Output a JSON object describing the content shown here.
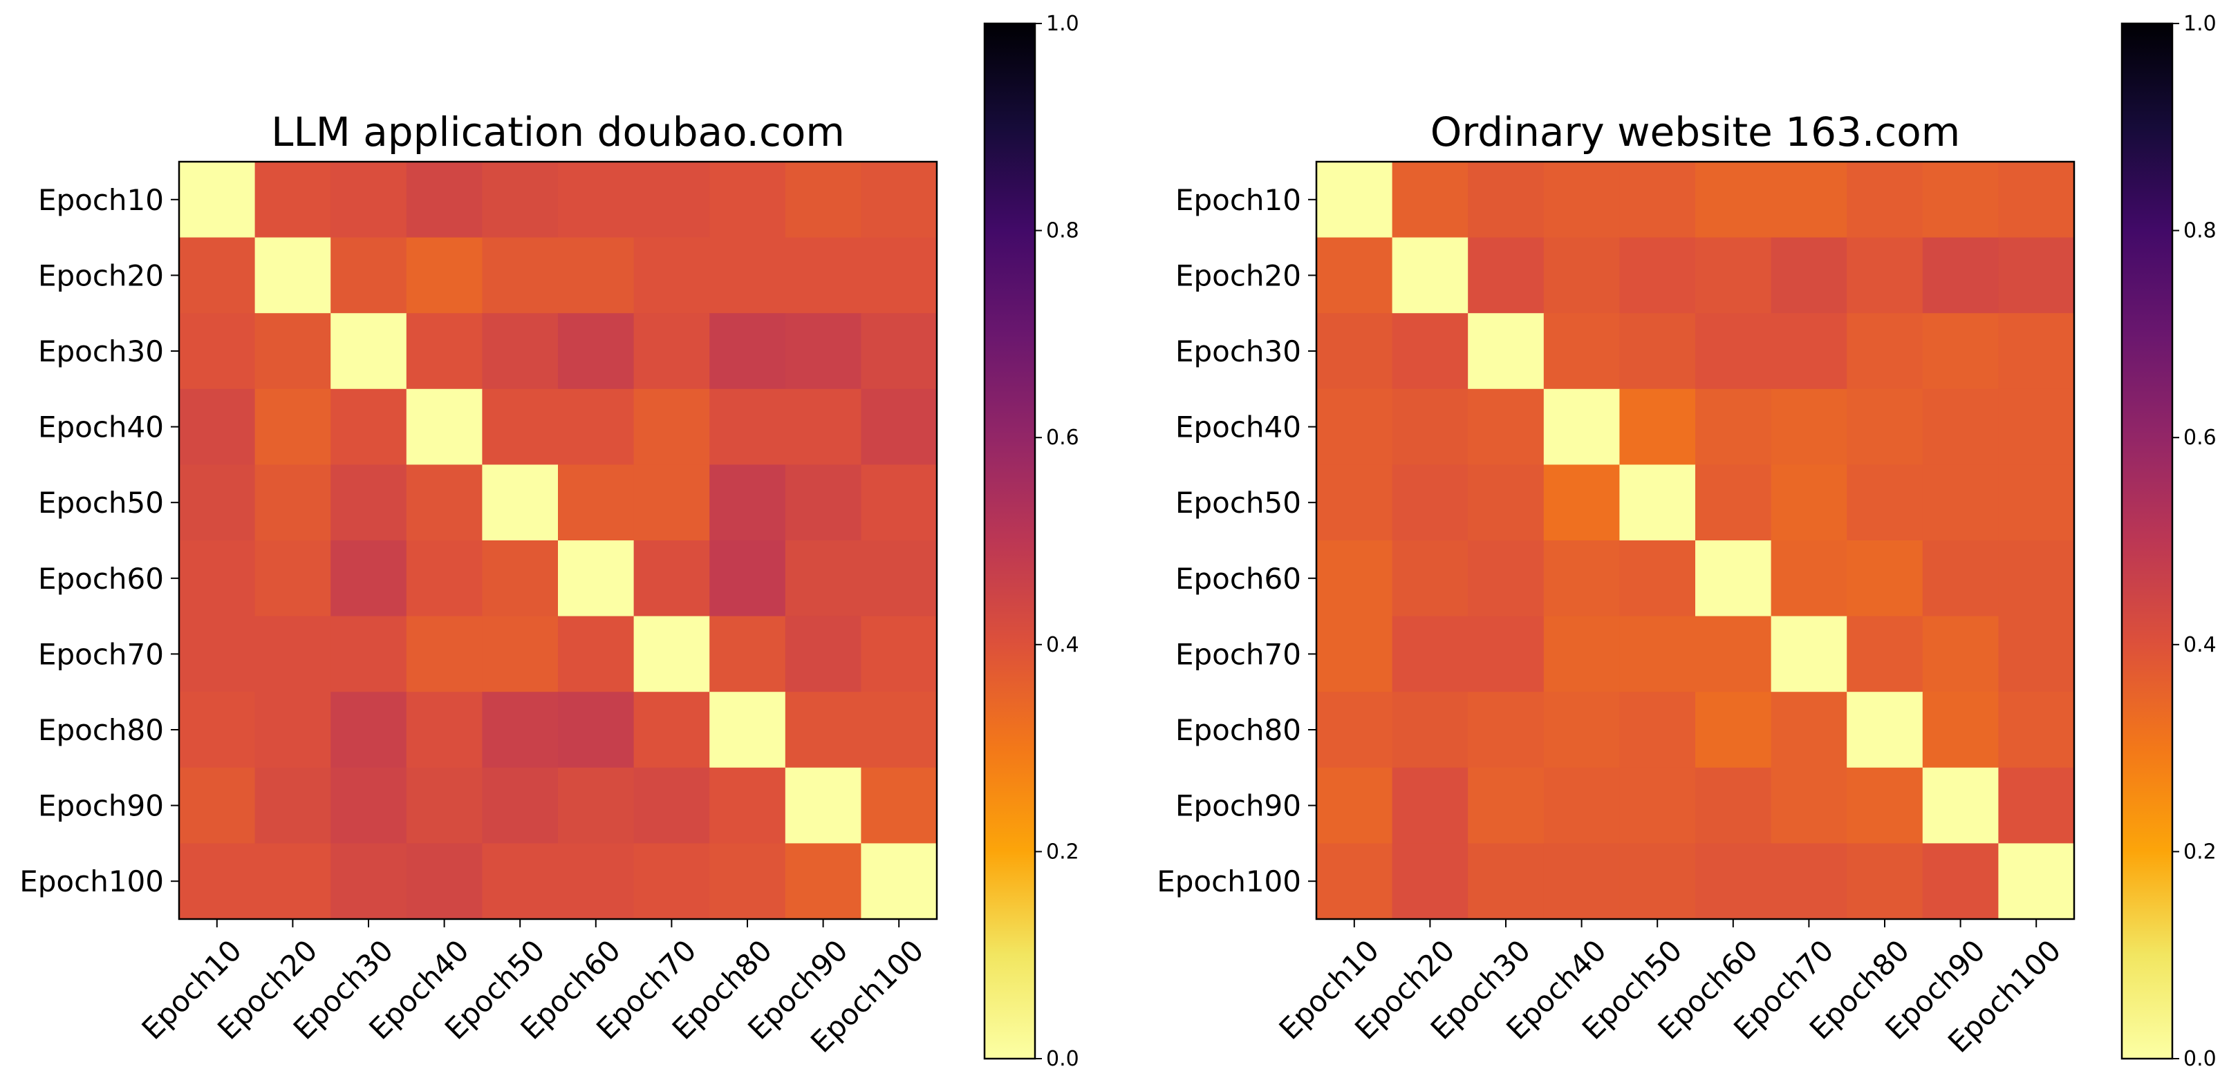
{
  "chart_data": [
    {
      "type": "heatmap",
      "title": "LLM application doubao.com",
      "xlabel": "",
      "ylabel": "",
      "row_labels": [
        "Epoch10",
        "Epoch20",
        "Epoch30",
        "Epoch40",
        "Epoch50",
        "Epoch60",
        "Epoch70",
        "Epoch80",
        "Epoch90",
        "Epoch100"
      ],
      "col_labels": [
        "Epoch10",
        "Epoch20",
        "Epoch30",
        "Epoch40",
        "Epoch50",
        "Epoch60",
        "Epoch70",
        "Epoch80",
        "Epoch90",
        "Epoch100"
      ],
      "colormap": "inferno_r",
      "vmin": 0.0,
      "vmax": 1.0,
      "colorbar_ticks": [
        "0.0",
        "0.2",
        "0.4",
        "0.6",
        "0.8",
        "1.0"
      ],
      "values": [
        [
          0.0,
          0.4,
          0.41,
          0.44,
          0.42,
          0.41,
          0.41,
          0.4,
          0.38,
          0.39
        ],
        [
          0.39,
          0.0,
          0.38,
          0.35,
          0.38,
          0.38,
          0.4,
          0.4,
          0.4,
          0.4
        ],
        [
          0.4,
          0.38,
          0.0,
          0.4,
          0.43,
          0.46,
          0.41,
          0.47,
          0.46,
          0.43
        ],
        [
          0.43,
          0.36,
          0.4,
          0.0,
          0.4,
          0.4,
          0.37,
          0.41,
          0.41,
          0.45
        ],
        [
          0.42,
          0.38,
          0.43,
          0.39,
          0.0,
          0.37,
          0.37,
          0.47,
          0.44,
          0.41
        ],
        [
          0.41,
          0.39,
          0.46,
          0.4,
          0.38,
          0.0,
          0.41,
          0.48,
          0.42,
          0.42
        ],
        [
          0.41,
          0.41,
          0.41,
          0.37,
          0.37,
          0.4,
          0.0,
          0.39,
          0.43,
          0.4
        ],
        [
          0.4,
          0.41,
          0.46,
          0.41,
          0.46,
          0.47,
          0.4,
          0.0,
          0.39,
          0.39
        ],
        [
          0.38,
          0.42,
          0.45,
          0.42,
          0.44,
          0.42,
          0.43,
          0.4,
          0.0,
          0.36
        ],
        [
          0.4,
          0.4,
          0.43,
          0.44,
          0.41,
          0.41,
          0.4,
          0.39,
          0.36,
          0.0
        ]
      ]
    },
    {
      "type": "heatmap",
      "title": "Ordinary website 163.com",
      "xlabel": "",
      "ylabel": "",
      "row_labels": [
        "Epoch10",
        "Epoch20",
        "Epoch30",
        "Epoch40",
        "Epoch50",
        "Epoch60",
        "Epoch70",
        "Epoch80",
        "Epoch90",
        "Epoch100"
      ],
      "col_labels": [
        "Epoch10",
        "Epoch20",
        "Epoch30",
        "Epoch40",
        "Epoch50",
        "Epoch60",
        "Epoch70",
        "Epoch80",
        "Epoch90",
        "Epoch100"
      ],
      "colormap": "inferno_r",
      "vmin": 0.0,
      "vmax": 1.0,
      "colorbar_ticks": [
        "0.0",
        "0.2",
        "0.4",
        "0.6",
        "0.8",
        "1.0"
      ],
      "values": [
        [
          0.0,
          0.36,
          0.38,
          0.37,
          0.37,
          0.35,
          0.35,
          0.37,
          0.36,
          0.37
        ],
        [
          0.36,
          0.0,
          0.41,
          0.38,
          0.4,
          0.39,
          0.42,
          0.39,
          0.43,
          0.42
        ],
        [
          0.38,
          0.4,
          0.0,
          0.37,
          0.38,
          0.4,
          0.4,
          0.37,
          0.36,
          0.37
        ],
        [
          0.37,
          0.38,
          0.37,
          0.0,
          0.32,
          0.36,
          0.35,
          0.36,
          0.37,
          0.37
        ],
        [
          0.37,
          0.39,
          0.38,
          0.32,
          0.0,
          0.37,
          0.34,
          0.37,
          0.37,
          0.37
        ],
        [
          0.35,
          0.38,
          0.39,
          0.36,
          0.37,
          0.0,
          0.35,
          0.34,
          0.38,
          0.38
        ],
        [
          0.35,
          0.4,
          0.4,
          0.35,
          0.35,
          0.35,
          0.0,
          0.37,
          0.35,
          0.38
        ],
        [
          0.37,
          0.38,
          0.37,
          0.36,
          0.37,
          0.33,
          0.36,
          0.0,
          0.34,
          0.37
        ],
        [
          0.35,
          0.41,
          0.36,
          0.37,
          0.37,
          0.38,
          0.36,
          0.35,
          0.0,
          0.4
        ],
        [
          0.37,
          0.41,
          0.38,
          0.38,
          0.38,
          0.39,
          0.39,
          0.38,
          0.4,
          0.0
        ]
      ]
    }
  ]
}
